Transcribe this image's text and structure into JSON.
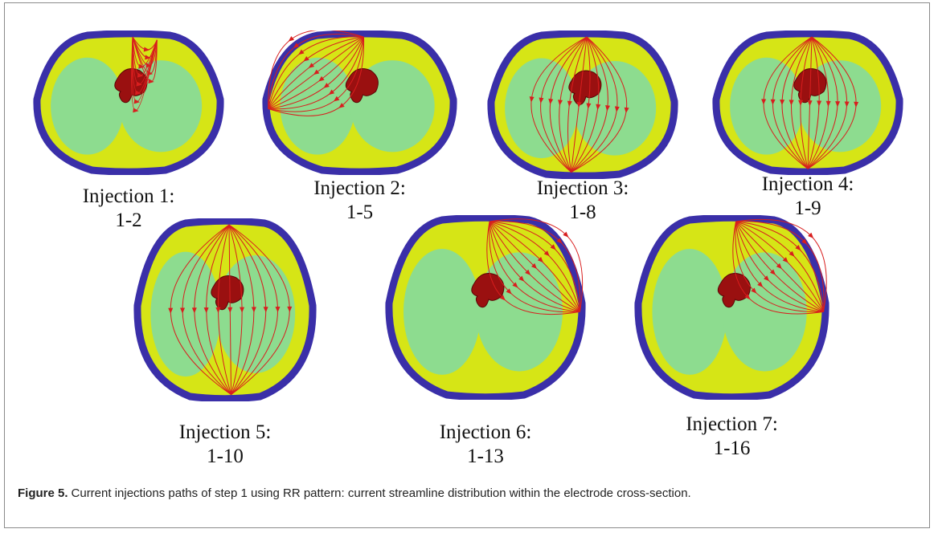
{
  "panels": [
    {
      "title": "Injection 1:",
      "pair": "1-2"
    },
    {
      "title": "Injection 2:",
      "pair": "1-5"
    },
    {
      "title": "Injection 3:",
      "pair": "1-8"
    },
    {
      "title": "Injection 4:",
      "pair": "1-9"
    },
    {
      "title": "Injection 5:",
      "pair": "1-10"
    },
    {
      "title": "Injection 6:",
      "pair": "1-13"
    },
    {
      "title": "Injection 7:",
      "pair": "1-16"
    }
  ],
  "caption": {
    "label": "Figure 5.",
    "text": "Current injections paths of step 1 using RR pattern: current streamline distribution within the electrode cross-section."
  }
}
